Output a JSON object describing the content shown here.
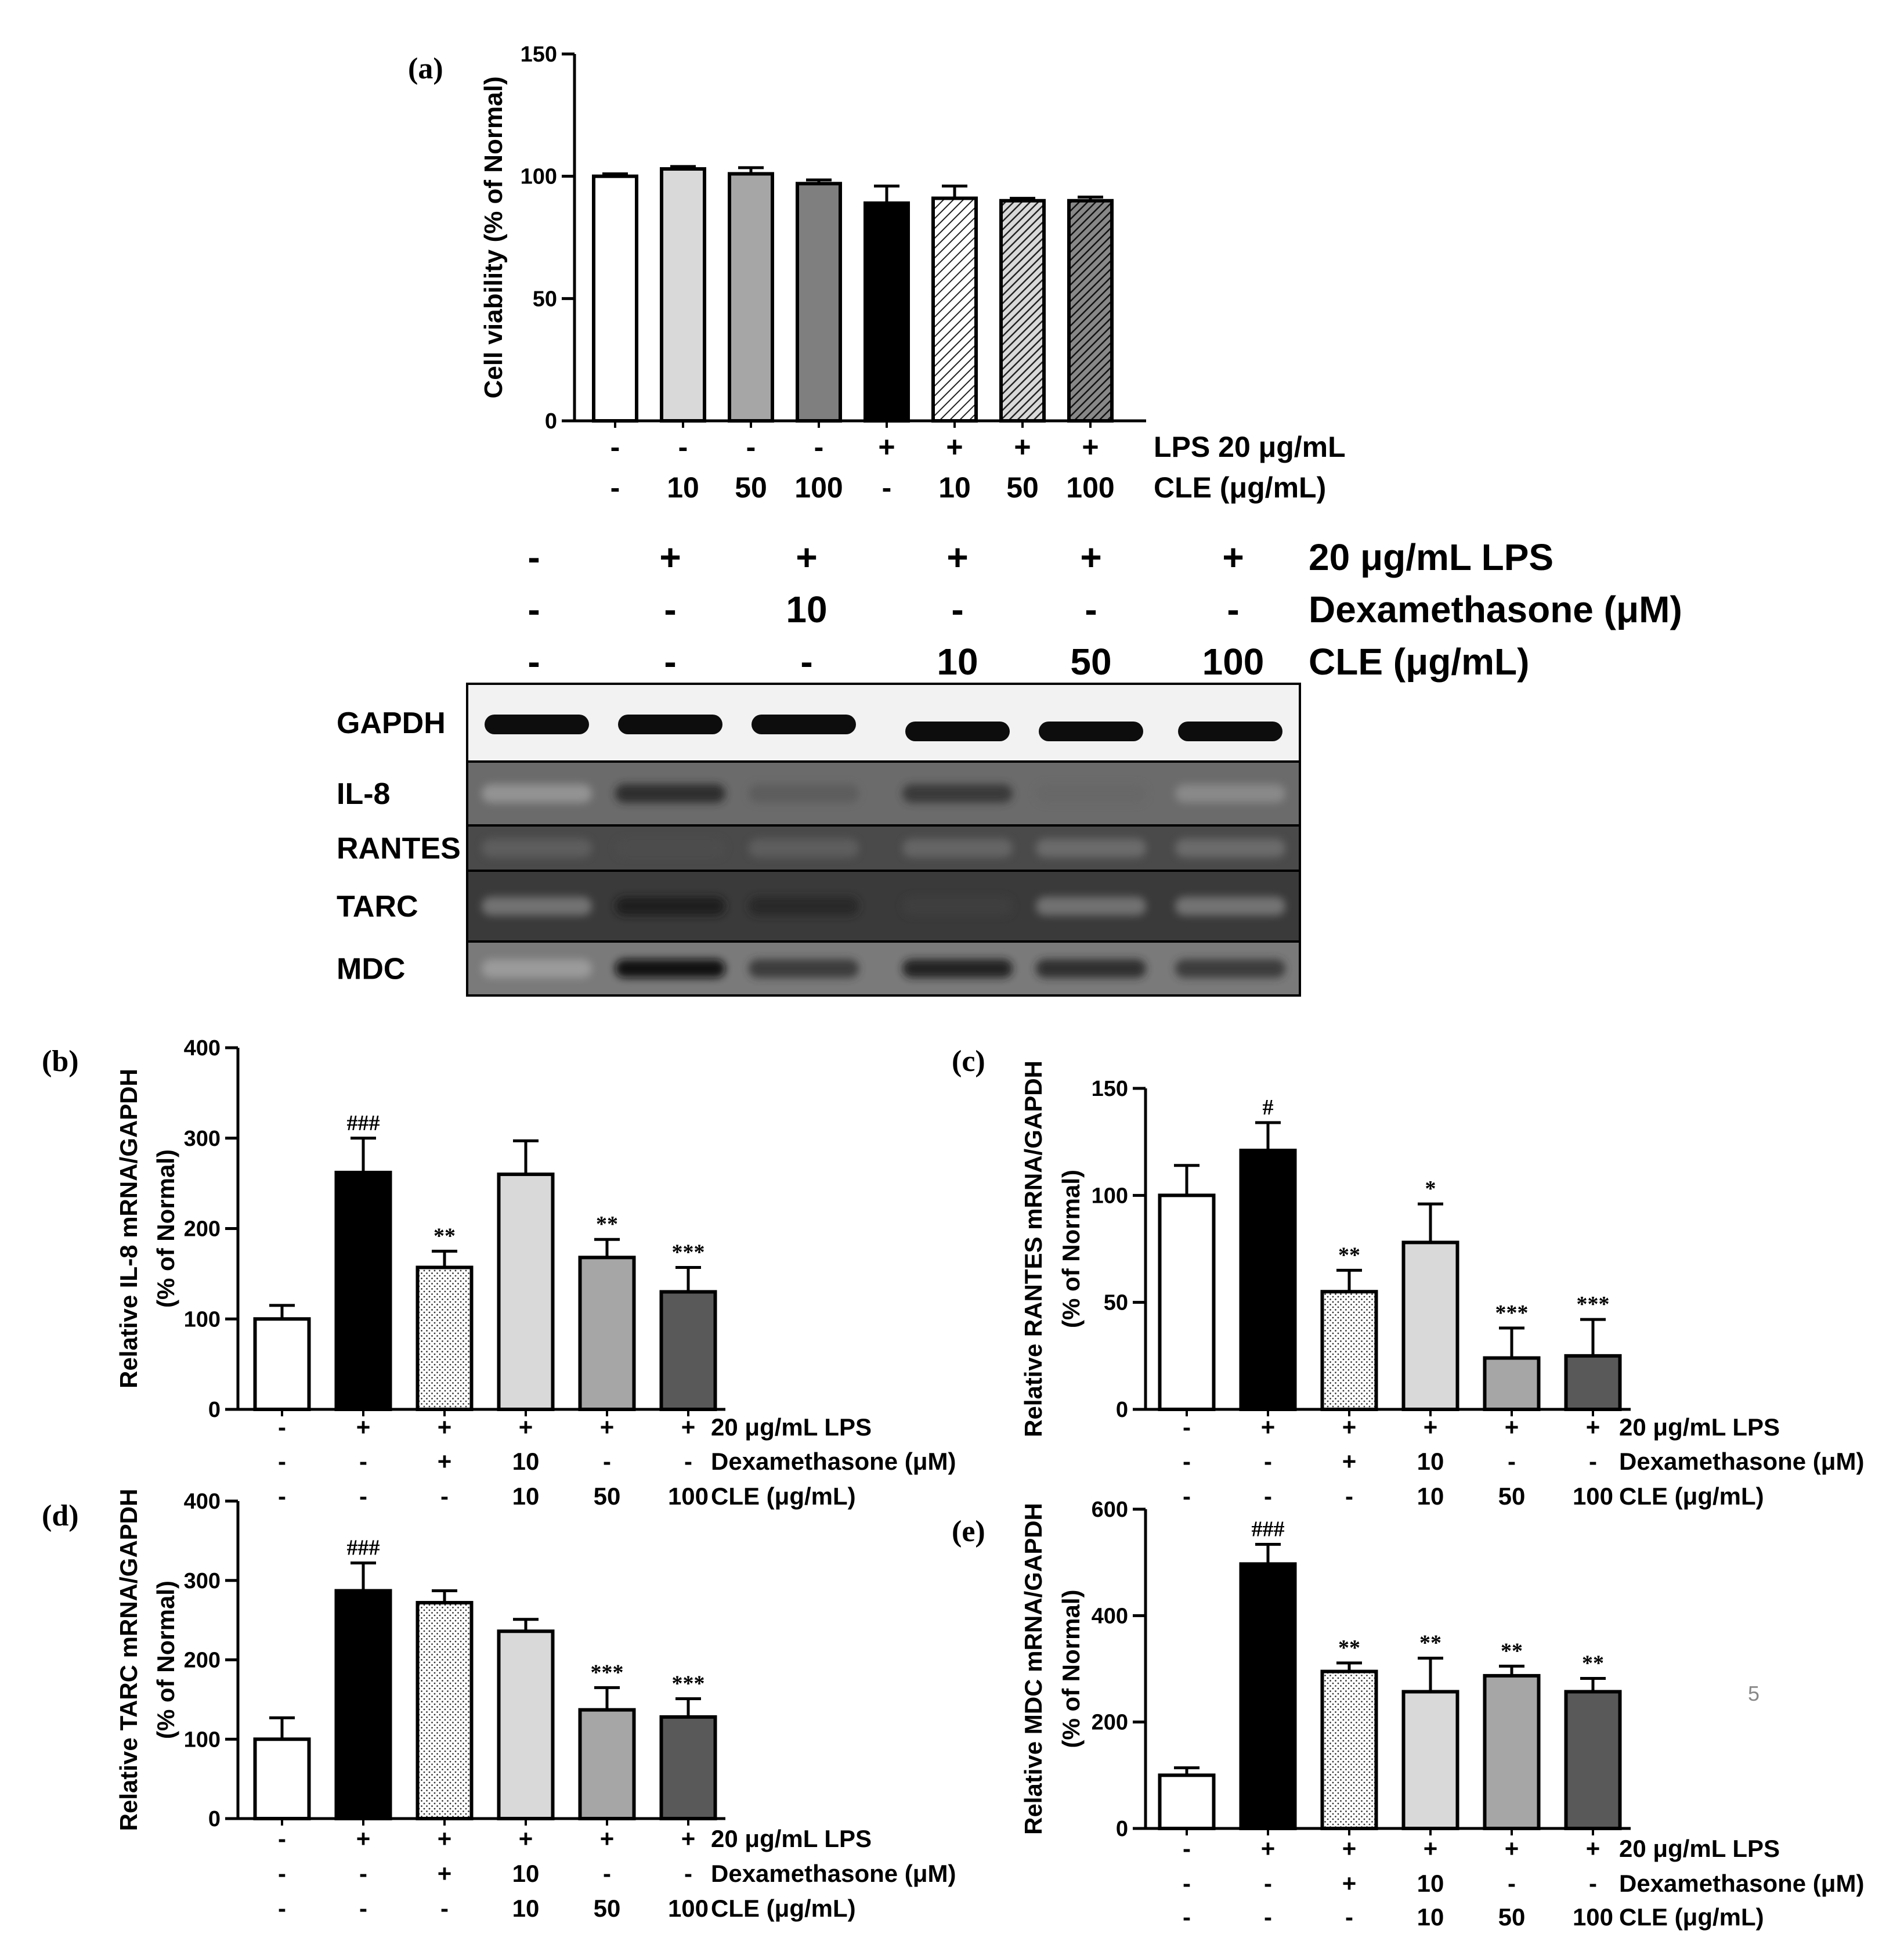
{
  "page_number": "5",
  "chart_data": [
    {
      "id": "a",
      "panel_label": "(a)",
      "type": "bar",
      "ylabel": "Cell viability (% of Normal)",
      "ylim": [
        0,
        150
      ],
      "yticks": [
        0,
        50,
        100,
        150
      ],
      "values": [
        100,
        103,
        101,
        97,
        89,
        91,
        90,
        90
      ],
      "errors": [
        1,
        1,
        2.5,
        1.5,
        7,
        5,
        1,
        1.5
      ],
      "fills": [
        "white",
        "light",
        "mid",
        "dark",
        "black",
        "hatch1",
        "hatch2",
        "hatch3"
      ],
      "condition_rows": [
        {
          "label": "LPS 20 μg/mL",
          "values": [
            "-",
            "-",
            "-",
            "-",
            "+",
            "+",
            "+",
            "+"
          ]
        },
        {
          "label": "CLE (μg/mL)",
          "values": [
            "-",
            "10",
            "50",
            "100",
            "-",
            "10",
            "50",
            "100"
          ]
        }
      ]
    },
    {
      "id": "b",
      "panel_label": "(b)",
      "type": "bar",
      "ylabel": "Relative IL-8 mRNA/GAPDH",
      "ylabel2": "(% of Normal)",
      "ylim": [
        0,
        400
      ],
      "yticks": [
        0,
        100,
        200,
        300,
        400
      ],
      "values": [
        100,
        262,
        157,
        260,
        168,
        130
      ],
      "errors": [
        15,
        38,
        18,
        37,
        20,
        27
      ],
      "annotations": [
        "",
        "###",
        "**",
        "",
        "**",
        "***"
      ],
      "fills": [
        "white",
        "black",
        "dotted",
        "light",
        "mid",
        "dark"
      ],
      "condition_rows": [
        {
          "label": "20 μg/mL LPS",
          "values": [
            "-",
            "+",
            "+",
            "+",
            "+",
            "+"
          ]
        },
        {
          "label": "Dexamethasone (μM)",
          "values": [
            "-",
            "-",
            "+",
            "10",
            "-",
            "-"
          ]
        },
        {
          "label": "CLE (μg/mL)",
          "values": [
            "-",
            "-",
            "-",
            "10",
            "50",
            "100"
          ]
        }
      ]
    },
    {
      "id": "c",
      "panel_label": "(c)",
      "type": "bar",
      "ylabel": "Relative RANTES mRNA/GAPDH",
      "ylabel2": "(% of Normal)",
      "ylim": [
        0,
        150
      ],
      "yticks": [
        0,
        50,
        100,
        150
      ],
      "values": [
        100,
        121,
        55,
        78,
        24,
        25
      ],
      "errors": [
        14,
        13,
        10,
        18,
        14,
        17
      ],
      "annotations": [
        "",
        "#",
        "**",
        "*",
        "***",
        "***"
      ],
      "fills": [
        "white",
        "black",
        "dotted",
        "light",
        "mid",
        "dark"
      ],
      "condition_rows": [
        {
          "label": "20 μg/mL LPS",
          "values": [
            "-",
            "+",
            "+",
            "+",
            "+",
            "+"
          ]
        },
        {
          "label": "Dexamethasone (μM)",
          "values": [
            "-",
            "-",
            "+",
            "10",
            "-",
            "-"
          ]
        },
        {
          "label": "CLE (μg/mL)",
          "values": [
            "-",
            "-",
            "-",
            "10",
            "50",
            "100"
          ]
        }
      ]
    },
    {
      "id": "d",
      "panel_label": "(d)",
      "type": "bar",
      "ylabel": "Relative TARC mRNA/GAPDH",
      "ylabel2": "(% of Normal)",
      "ylim": [
        0,
        400
      ],
      "yticks": [
        0,
        100,
        200,
        300,
        400
      ],
      "values": [
        100,
        287,
        272,
        236,
        137,
        128
      ],
      "errors": [
        27,
        35,
        15,
        15,
        28,
        23
      ],
      "annotations": [
        "",
        "###",
        "",
        "",
        "***",
        "***"
      ],
      "fills": [
        "white",
        "black",
        "dotted",
        "light",
        "mid",
        "dark"
      ],
      "condition_rows": [
        {
          "label": "20 μg/mL LPS",
          "values": [
            "-",
            "+",
            "+",
            "+",
            "+",
            "+"
          ]
        },
        {
          "label": "Dexamethasone (μM)",
          "values": [
            "-",
            "-",
            "+",
            "10",
            "-",
            "-"
          ]
        },
        {
          "label": "CLE (μg/mL)",
          "values": [
            "-",
            "-",
            "-",
            "10",
            "50",
            "100"
          ]
        }
      ]
    },
    {
      "id": "e",
      "panel_label": "(e)",
      "type": "bar",
      "ylabel": "Relative MDC mRNA/GAPDH",
      "ylabel2": "(% of Normal)",
      "ylim": [
        0,
        600
      ],
      "yticks": [
        0,
        200,
        400,
        600
      ],
      "values": [
        100,
        497,
        295,
        257,
        287,
        257
      ],
      "errors": [
        14,
        37,
        16,
        63,
        18,
        25
      ],
      "annotations": [
        "",
        "###",
        "**",
        "**",
        "**",
        "**"
      ],
      "fills": [
        "white",
        "black",
        "dotted",
        "light",
        "mid",
        "dark"
      ],
      "condition_rows": [
        {
          "label": "20 μg/mL LPS",
          "values": [
            "-",
            "+",
            "+",
            "+",
            "+",
            "+"
          ]
        },
        {
          "label": "Dexamethasone (μM)",
          "values": [
            "-",
            "-",
            "+",
            "10",
            "-",
            "-"
          ]
        },
        {
          "label": "CLE (μg/mL)",
          "values": [
            "-",
            "-",
            "-",
            "10",
            "50",
            "100"
          ]
        }
      ]
    }
  ],
  "gel": {
    "condition_rows": [
      {
        "label": "20 μg/mL LPS",
        "values": [
          "-",
          "+",
          "+",
          "+",
          "+",
          "+"
        ]
      },
      {
        "label": "Dexamethasone (μM)",
        "values": [
          "-",
          "-",
          "10",
          "-",
          "-",
          "-"
        ]
      },
      {
        "label": "CLE (μg/mL)",
        "values": [
          "-",
          "-",
          "-",
          "10",
          "50",
          "100"
        ]
      }
    ],
    "rows": [
      {
        "label": "GAPDH",
        "intensity": [
          1.0,
          1.0,
          1.0,
          1.0,
          1.0,
          1.0
        ]
      },
      {
        "label": "IL-8",
        "intensity": [
          0.1,
          0.85,
          0.65,
          0.8,
          0.6,
          0.35
        ]
      },
      {
        "label": "RANTES",
        "intensity": [
          0.6,
          0.7,
          0.6,
          0.55,
          0.5,
          0.5
        ]
      },
      {
        "label": "TARC",
        "intensity": [
          0.1,
          0.9,
          0.85,
          0.75,
          0.35,
          0.3
        ]
      },
      {
        "label": "MDC",
        "intensity": [
          0.2,
          0.95,
          0.8,
          0.9,
          0.85,
          0.8
        ]
      }
    ]
  }
}
